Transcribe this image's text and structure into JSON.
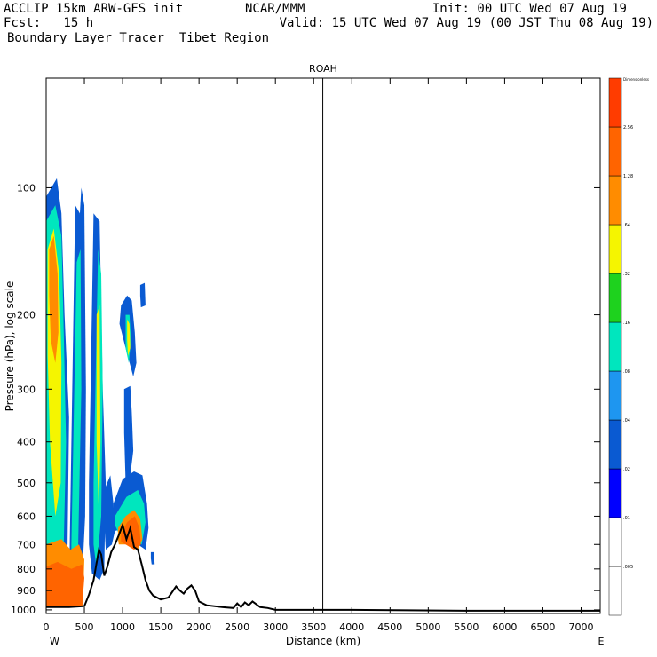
{
  "header": {
    "left_line1": "ACCLIP 15km ARW-GFS init",
    "center_line1": "NCAR/MMM",
    "right_line1": "Init: 00 UTC Wed 07 Aug 19",
    "left_line2": "Fcst:   15 h",
    "right_line2": "Valid: 15 UTC Wed 07 Aug 19 (00 JST Thu 08 Aug 19)",
    "line3": "Boundary Layer Tracer  Tibet Region"
  },
  "chart_data": {
    "type": "heatmap",
    "title": "ROAH",
    "xlabel": "Distance (km)",
    "ylabel": "Pressure (hPa), log scale",
    "x_ticks": [
      0,
      500,
      1000,
      1500,
      2000,
      2500,
      3000,
      3500,
      4000,
      4500,
      5000,
      5500,
      6000,
      6500,
      7000
    ],
    "y_ticks": [
      100,
      200,
      300,
      400,
      500,
      600,
      700,
      800,
      900,
      1000
    ],
    "xlim": [
      0,
      7250
    ],
    "ylim": [
      1020,
      55
    ],
    "y_scale": "log",
    "left_end_label": "W",
    "right_end_label": "E",
    "vertical_marker_km": 3620,
    "colorbar": {
      "unit_label": "Dimensionless",
      "levels": [
        ".005",
        ".01",
        ".02",
        ".04",
        ".08",
        ".16",
        ".32",
        ".64",
        "1.28",
        "2.56"
      ],
      "colors": [
        "#ffffff",
        "#0000ff",
        "#0a5ad2",
        "#1e96f0",
        "#00e6be",
        "#1ed21e",
        "#f5f500",
        "#ff8c00",
        "#ff6400",
        "#ff3c00"
      ]
    },
    "terrain": {
      "x_km": [
        0,
        300,
        500,
        560,
        620,
        690,
        720,
        760,
        800,
        850,
        900,
        950,
        1000,
        1050,
        1100,
        1150,
        1200,
        1250,
        1300,
        1350,
        1400,
        1500,
        1600,
        1700,
        1750,
        1800,
        1850,
        1900,
        1950,
        2000,
        2100,
        2300,
        2450,
        2500,
        2550,
        2600,
        2650,
        2700,
        2750,
        2800,
        2900,
        3000,
        4000,
        5500,
        7250
      ],
      "p_hpa": [
        985,
        985,
        980,
        920,
        850,
        720,
        740,
        830,
        790,
        730,
        700,
        665,
        630,
        680,
        640,
        710,
        720,
        780,
        850,
        900,
        925,
        945,
        935,
        880,
        900,
        915,
        890,
        875,
        900,
        955,
        975,
        985,
        990,
        965,
        985,
        960,
        975,
        955,
        970,
        985,
        990,
        1000,
        1000,
        1005,
        1005
      ]
    },
    "tracer_blobs": [
      {
        "level": 2,
        "x": [
          0,
          140,
          200,
          240,
          300,
          280,
          220,
          120,
          0
        ],
        "p": [
          105,
          95,
          115,
          200,
          350,
          700,
          860,
          930,
          930
        ]
      },
      {
        "level": 2,
        "x": [
          300,
          380,
          440,
          480,
          500,
          470,
          420,
          360,
          300
        ],
        "p": [
          880,
          110,
          115,
          180,
          420,
          760,
          900,
          920,
          900
        ]
      },
      {
        "level": 2,
        "x": [
          430,
          460,
          500,
          520,
          510,
          470,
          430
        ],
        "p": [
          125,
          100,
          110,
          300,
          600,
          840,
          700
        ]
      },
      {
        "level": 2,
        "x": [
          560,
          620,
          700,
          740,
          780,
          760,
          700,
          600,
          560
        ],
        "p": [
          500,
          115,
          120,
          300,
          500,
          800,
          850,
          820,
          700
        ]
      },
      {
        "level": 2,
        "x": [
          760,
          840,
          880,
          900,
          860,
          780,
          760
        ],
        "p": [
          520,
          480,
          560,
          650,
          700,
          720,
          620
        ]
      },
      {
        "level": 2,
        "x": [
          980,
          1060,
          1120,
          1160,
          1180,
          1140,
          1040,
          960,
          980
        ],
        "p": [
          190,
          180,
          185,
          220,
          260,
          280,
          240,
          210,
          190
        ]
      },
      {
        "level": 2,
        "x": [
          1020,
          1100,
          1120,
          1140,
          1100,
          1040,
          1020
        ],
        "p": [
          300,
          295,
          340,
          420,
          480,
          500,
          380
        ]
      },
      {
        "level": 2,
        "x": [
          880,
          1000,
          1150,
          1260,
          1320,
          1340,
          1300,
          1200,
          1050,
          900,
          880
        ],
        "p": [
          560,
          490,
          470,
          480,
          560,
          640,
          720,
          700,
          640,
          650,
          600
        ]
      },
      {
        "level": 2,
        "x": [
          1230,
          1290,
          1300,
          1240,
          1230
        ],
        "p": [
          170,
          168,
          190,
          192,
          180
        ]
      },
      {
        "level": 2,
        "x": [
          1370,
          1410,
          1420,
          1380,
          1370
        ],
        "p": [
          730,
          730,
          780,
          780,
          755
        ]
      },
      {
        "level": 4,
        "x": [
          0,
          120,
          200,
          230,
          260,
          230,
          160,
          60,
          0
        ],
        "p": [
          120,
          110,
          130,
          220,
          400,
          700,
          860,
          900,
          900
        ]
      },
      {
        "level": 4,
        "x": [
          330,
          400,
          450,
          460,
          420,
          360,
          330
        ],
        "p": [
          700,
          150,
          140,
          300,
          700,
          900,
          880
        ]
      },
      {
        "level": 4,
        "x": [
          620,
          680,
          720,
          740,
          720,
          660,
          620
        ],
        "p": [
          500,
          140,
          160,
          300,
          600,
          800,
          700
        ]
      },
      {
        "level": 4,
        "x": [
          1040,
          1090,
          1110,
          1080,
          1040
        ],
        "p": [
          200,
          200,
          230,
          260,
          240
        ]
      },
      {
        "level": 4,
        "x": [
          900,
          1050,
          1200,
          1280,
          1300,
          1250,
          1100,
          950,
          900
        ],
        "p": [
          600,
          540,
          520,
          560,
          620,
          700,
          680,
          660,
          630
        ]
      },
      {
        "level": 6,
        "x": [
          20,
          100,
          170,
          200,
          190,
          120,
          50,
          20
        ],
        "p": [
          140,
          125,
          160,
          260,
          500,
          600,
          400,
          250
        ]
      },
      {
        "level": 6,
        "x": [
          660,
          700,
          710,
          690,
          660
        ],
        "p": [
          200,
          190,
          400,
          600,
          400
        ]
      },
      {
        "level": 6,
        "x": [
          1060,
          1090,
          1100,
          1070,
          1060
        ],
        "p": [
          205,
          210,
          240,
          250,
          230
        ]
      },
      {
        "level": 7,
        "x": [
          40,
          100,
          150,
          160,
          120,
          60,
          40
        ],
        "p": [
          140,
          130,
          160,
          220,
          260,
          230,
          180
        ]
      },
      {
        "level": 7,
        "x": [
          0,
          200,
          320,
          430,
          500,
          480,
          300,
          100,
          0
        ],
        "p": [
          700,
          680,
          720,
          700,
          760,
          980,
          985,
          985,
          985
        ]
      },
      {
        "level": 7,
        "x": [
          940,
          1040,
          1150,
          1230,
          1260,
          1200,
          1050,
          950,
          940
        ],
        "p": [
          640,
          600,
          580,
          610,
          680,
          720,
          700,
          700,
          680
        ]
      },
      {
        "level": 8,
        "x": [
          0,
          150,
          330,
          470,
          500,
          470,
          300,
          100,
          0
        ],
        "p": [
          790,
          770,
          800,
          780,
          840,
          980,
          985,
          985,
          985
        ]
      },
      {
        "level": 8,
        "x": [
          980,
          1060,
          1160,
          1220,
          1240,
          1150,
          1040,
          980
        ],
        "p": [
          660,
          620,
          600,
          640,
          700,
          720,
          700,
          690
        ]
      }
    ]
  }
}
